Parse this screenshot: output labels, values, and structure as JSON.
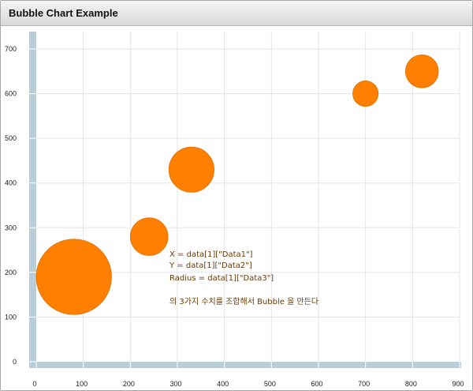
{
  "window": {
    "title": "Bubble Chart Example"
  },
  "colors": {
    "bubble": "#ff8000",
    "bubble_edge": "#e06e00",
    "axis_bar": "#b8ced8",
    "grid": "#e2e6e8",
    "note": "#6b3b05"
  },
  "chart_data": {
    "type": "scatter",
    "subtype": "bubble",
    "title": "",
    "xlabel": "",
    "ylabel": "",
    "xlim": [
      0,
      900
    ],
    "ylim": [
      0,
      700
    ],
    "x_ticks": [
      "0",
      "100",
      "200",
      "300",
      "400",
      "500",
      "600",
      "700",
      "800",
      "900"
    ],
    "y_ticks": [
      "0",
      "100",
      "200",
      "300",
      "400",
      "500",
      "600",
      "700"
    ],
    "grid": true,
    "legend": "none",
    "points": [
      {
        "x": 80,
        "y": 190,
        "r": 80
      },
      {
        "x": 240,
        "y": 280,
        "r": 40
      },
      {
        "x": 330,
        "y": 430,
        "r": 48
      },
      {
        "x": 700,
        "y": 600,
        "r": 27
      },
      {
        "x": 820,
        "y": 650,
        "r": 35
      }
    ],
    "annotation": [
      "X = data[1][\"Data1\"]",
      "Y = data[1][\"Data2\"]",
      "Radius = data[1][\"Data3\"]",
      "",
      "의 3가지 수치를 조합해서 Bubble 을 만든다"
    ]
  }
}
